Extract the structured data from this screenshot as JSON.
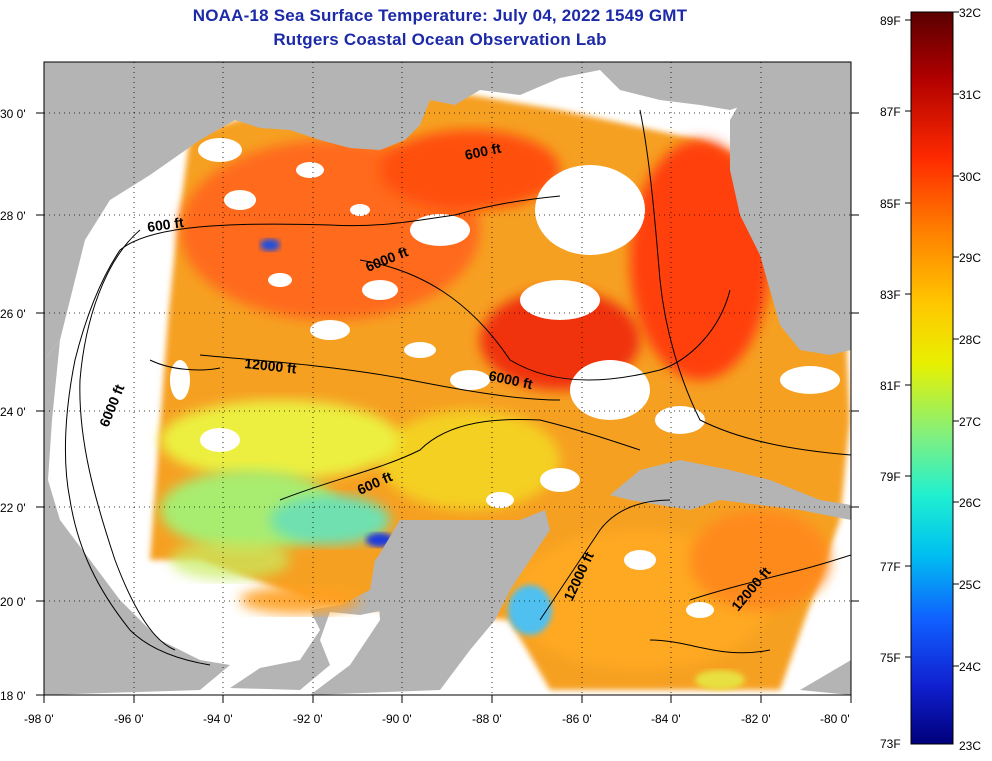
{
  "title": {
    "line1": "NOAA-18 Sea Surface Temperature:  July 04, 2022 1549 GMT",
    "line2": "Rutgers Coastal Ocean Observation Lab"
  },
  "axes": {
    "x_labels": [
      "-98 0'",
      "-96 0'",
      "-94 0'",
      "-92 0'",
      "-90 0'",
      "-88 0'",
      "-86 0'",
      "-84 0'",
      "-82 0'",
      "-80 0'"
    ],
    "y_labels": [
      "30 0'",
      "28 0'",
      "26 0'",
      "24 0'",
      "22 0'",
      "20 0'",
      "18 0'"
    ],
    "lon_range": [
      -98,
      -80
    ],
    "lat_range": [
      18,
      31
    ]
  },
  "contour_labels": [
    {
      "text": "600 ft"
    },
    {
      "text": "600 ft"
    },
    {
      "text": "6000 ft"
    },
    {
      "text": "12000 ft"
    },
    {
      "text": "6000 ft"
    },
    {
      "text": "6000 ft"
    },
    {
      "text": "600 ft"
    },
    {
      "text": "12000 ft"
    },
    {
      "text": "12000 ft"
    }
  ],
  "colorbar": {
    "fahrenheit_labels": [
      "89F",
      "87F",
      "85F",
      "83F",
      "81F",
      "79F",
      "77F",
      "75F",
      "73F"
    ],
    "celsius_labels": [
      "32C",
      "31C",
      "30C",
      "29C",
      "28C",
      "27C",
      "26C",
      "25C",
      "24C",
      "23C"
    ],
    "range_c": [
      23,
      32
    ],
    "colors": [
      "#5a0000",
      "#d41010",
      "#ff5a00",
      "#ffa000",
      "#f0e000",
      "#b0f050",
      "#40f0c0",
      "#00d0f0",
      "#1080ff",
      "#1020d0",
      "#000080"
    ]
  },
  "colors": {
    "land": "#b4b4b4",
    "cloud": "#ffffff",
    "title": "#1c2aa8"
  }
}
